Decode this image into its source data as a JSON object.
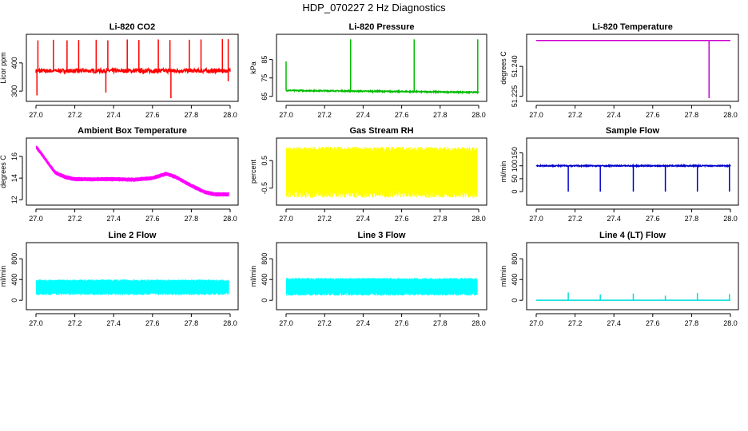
{
  "page_title": "HDP_070227  2 Hz Diagnostics",
  "chart_data": [
    {
      "type": "line",
      "title": "Li-820 CO2",
      "xlabel": "",
      "ylabel": "Licor ppm",
      "xlim": [
        27.0,
        28.0
      ],
      "ylim": [
        275,
        490
      ],
      "xticks": [
        27.0,
        27.2,
        27.4,
        27.6,
        27.8,
        28.0
      ],
      "xtick_labels": [
        "27.0",
        "27.2",
        "27.4",
        "27.6",
        "27.8",
        "28.0"
      ],
      "yticks": [
        300,
        400
      ],
      "ytick_labels": [
        "300",
        "400"
      ],
      "color": "#ff0000",
      "baseline": 372,
      "noise": 7,
      "spikes_up": [
        [
          27.01,
          480
        ],
        [
          27.09,
          482
        ],
        [
          27.16,
          480
        ],
        [
          27.22,
          481
        ],
        [
          27.31,
          482
        ],
        [
          27.37,
          480
        ],
        [
          27.47,
          483
        ],
        [
          27.53,
          481
        ],
        [
          27.63,
          483
        ],
        [
          27.69,
          481
        ],
        [
          27.79,
          482
        ],
        [
          27.85,
          483
        ],
        [
          27.96,
          484
        ],
        [
          27.99,
          484
        ]
      ],
      "spikes_down": [
        [
          27.005,
          285
        ],
        [
          27.36,
          295
        ],
        [
          27.695,
          275
        ],
        [
          27.99,
          335
        ]
      ]
    },
    {
      "type": "line",
      "title": "Li-820 Pressure",
      "xlabel": "",
      "ylabel": "kPa",
      "xlim": [
        27.0,
        28.0
      ],
      "ylim": [
        64,
        97
      ],
      "xticks": [
        27.0,
        27.2,
        27.4,
        27.6,
        27.8,
        28.0
      ],
      "xtick_labels": [
        "27.0",
        "27.2",
        "27.4",
        "27.6",
        "27.8",
        "28.0"
      ],
      "yticks": [
        65,
        75,
        85
      ],
      "ytick_labels": [
        "65",
        "75",
        "85"
      ],
      "color": "#00bb00",
      "baseline_start": 68.2,
      "baseline_end": 67.2,
      "noise": 0.3,
      "spikes_up": [
        [
          27.0,
          84
        ],
        [
          27.335,
          96
        ],
        [
          27.665,
          96
        ],
        [
          27.995,
          96
        ]
      ],
      "spikes_down": []
    },
    {
      "type": "line",
      "title": "Li-820 Temperature",
      "xlabel": "",
      "ylabel": "degrees C",
      "xlim": [
        27.0,
        28.0
      ],
      "ylim": [
        51.224,
        51.2545
      ],
      "xticks": [
        27.0,
        27.2,
        27.4,
        27.6,
        27.8,
        28.0
      ],
      "xtick_labels": [
        "27.0",
        "27.2",
        "27.4",
        "27.6",
        "27.8",
        "28.0"
      ],
      "yticks": [
        51.225,
        51.24
      ],
      "ytick_labels": [
        "51.225",
        "51.240"
      ],
      "color": "#cc00cc",
      "baseline": 51.253,
      "noise": 0,
      "spikes_up": [],
      "spikes_down": [
        [
          27.89,
          51.224
        ]
      ]
    },
    {
      "type": "line",
      "title": "Ambient Box Temperature",
      "xlabel": "",
      "ylabel": "degrees C",
      "xlim": [
        27.0,
        28.0
      ],
      "ylim": [
        11.8,
        17.4
      ],
      "xticks": [
        27.0,
        27.2,
        27.4,
        27.6,
        27.8,
        28.0
      ],
      "xtick_labels": [
        "27.0",
        "27.2",
        "27.4",
        "27.6",
        "27.8",
        "28.0"
      ],
      "yticks": [
        12,
        14,
        16
      ],
      "ytick_labels": [
        "12",
        "14",
        "16"
      ],
      "color": "#ff00ff",
      "profile": [
        [
          27.0,
          16.9
        ],
        [
          27.03,
          16.2
        ],
        [
          27.07,
          15.2
        ],
        [
          27.1,
          14.5
        ],
        [
          27.15,
          14.1
        ],
        [
          27.2,
          13.9
        ],
        [
          27.3,
          13.9
        ],
        [
          27.4,
          13.9
        ],
        [
          27.5,
          13.85
        ],
        [
          27.6,
          14.0
        ],
        [
          27.67,
          14.4
        ],
        [
          27.72,
          14.1
        ],
        [
          27.8,
          13.3
        ],
        [
          27.87,
          12.7
        ],
        [
          27.92,
          12.5
        ],
        [
          27.99,
          12.5
        ]
      ],
      "band": 0.4
    },
    {
      "type": "line",
      "title": "Gas Stream RH",
      "xlabel": "",
      "ylabel": "percent",
      "xlim": [
        27.0,
        28.0
      ],
      "ylim": [
        -1.0,
        1.2
      ],
      "xticks": [
        27.0,
        27.2,
        27.4,
        27.6,
        27.8,
        28.0
      ],
      "xtick_labels": [
        "27.0",
        "27.2",
        "27.4",
        "27.6",
        "27.8",
        "28.0"
      ],
      "yticks": [
        -0.5,
        0.5
      ],
      "ytick_labels": [
        "-0.5",
        "0.5"
      ],
      "color": "#ffff00",
      "band_min": -0.85,
      "band_max": 1.0
    },
    {
      "type": "line",
      "title": "Sample Flow",
      "xlabel": "",
      "ylabel": "ml/min",
      "xlim": [
        27.0,
        28.0
      ],
      "ylim": [
        -40,
        195
      ],
      "xticks": [
        27.0,
        27.2,
        27.4,
        27.6,
        27.8,
        28.0
      ],
      "xtick_labels": [
        "27.0",
        "27.2",
        "27.4",
        "27.6",
        "27.8",
        "28.0"
      ],
      "yticks": [
        0,
        50,
        100,
        150
      ],
      "ytick_labels": [
        "0",
        "50",
        "100",
        "150"
      ],
      "color": "#0000cc",
      "baseline": 100,
      "noise": 2,
      "spikes_up": [],
      "spikes_down": [
        [
          27.165,
          0
        ],
        [
          27.33,
          0
        ],
        [
          27.5,
          0
        ],
        [
          27.665,
          0
        ],
        [
          27.83,
          0
        ],
        [
          27.995,
          0
        ]
      ]
    },
    {
      "type": "line",
      "title": "Line 2 Flow",
      "xlabel": "",
      "ylabel": "ml/min",
      "xlim": [
        27.0,
        28.0
      ],
      "ylim": [
        -120,
        1050
      ],
      "xticks": [
        27.0,
        27.2,
        27.4,
        27.6,
        27.8,
        28.0
      ],
      "xtick_labels": [
        "27.0",
        "27.2",
        "27.4",
        "27.6",
        "27.8",
        "28.0"
      ],
      "yticks": [
        0,
        400,
        800
      ],
      "ytick_labels": [
        "0",
        "400",
        "800"
      ],
      "color": "#00ffff",
      "band_min": 100,
      "band_max": 400
    },
    {
      "type": "line",
      "title": "Line 3 Flow",
      "xlabel": "",
      "ylabel": "ml/min",
      "xlim": [
        27.0,
        28.0
      ],
      "ylim": [
        -120,
        1050
      ],
      "xticks": [
        27.0,
        27.2,
        27.4,
        27.6,
        27.8,
        28.0
      ],
      "xtick_labels": [
        "27.0",
        "27.2",
        "27.4",
        "27.6",
        "27.8",
        "28.0"
      ],
      "yticks": [
        0,
        400,
        800
      ],
      "ytick_labels": [
        "0",
        "400",
        "800"
      ],
      "color": "#00ffff",
      "band_min": 90,
      "band_max": 430
    },
    {
      "type": "line",
      "title": "Line 4 (LT) Flow",
      "xlabel": "",
      "ylabel": "ml/min",
      "xlim": [
        27.0,
        28.0
      ],
      "ylim": [
        -120,
        1050
      ],
      "xticks": [
        27.0,
        27.2,
        27.4,
        27.6,
        27.8,
        28.0
      ],
      "xtick_labels": [
        "27.0",
        "27.2",
        "27.4",
        "27.6",
        "27.8",
        "28.0"
      ],
      "yticks": [
        0,
        400,
        800
      ],
      "ytick_labels": [
        "0",
        "400",
        "800"
      ],
      "color": "#00dddd",
      "baseline": 2,
      "noise": 0,
      "spikes_up": [
        [
          27.165,
          150
        ],
        [
          27.33,
          110
        ],
        [
          27.5,
          130
        ],
        [
          27.665,
          90
        ],
        [
          27.83,
          140
        ],
        [
          27.995,
          120
        ]
      ],
      "spikes_down": []
    }
  ]
}
